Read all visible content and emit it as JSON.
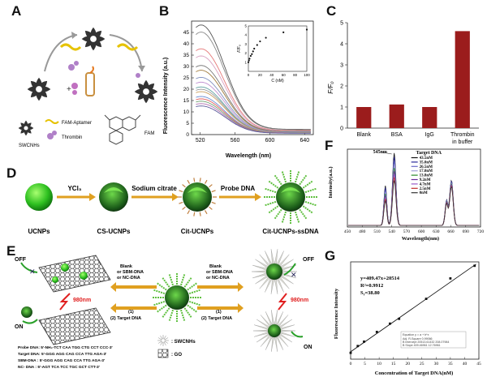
{
  "panels": {
    "A": {
      "label": "A",
      "legend": {
        "swcnhs": "SWCNHs",
        "aptamer": "FAM-Aptamer",
        "thrombin": "Thrombin",
        "fam": "FAM"
      }
    },
    "B": {
      "label": "B",
      "ylabel": "Fluorescence Intensity (a.u.)",
      "xlabel": "Wavelength (nm)",
      "inset": {
        "ylabel": "F/F₀",
        "xlabel": "C (nM)"
      }
    },
    "C": {
      "label": "C",
      "ylabel": "F/F₀"
    },
    "D": {
      "label": "D",
      "reagents": [
        "YCl₃",
        "Sodium citrate",
        "Probe DNA"
      ],
      "stages": [
        "UCNPs",
        "CS-UCNPs",
        "Cit-UCNPs",
        "Cit-UCNPs-ssDNA"
      ]
    },
    "E": {
      "label": "E",
      "off": "OFF",
      "on": "ON",
      "nm": "980nm",
      "left_options": [
        "Blank",
        "or SBM-DNA",
        "or NC-DNA"
      ],
      "right_options": [
        "Blank",
        "or SBM-DNA",
        "or NC-DNA"
      ],
      "step1": "(1)",
      "step2": "(2) Target DNA",
      "legend_swcnts": ": SWCNHs",
      "legend_go": ": GO",
      "sequences": [
        "Probe DNA: 5'-NH₂-TCT CAA TGG CTG CCT CCC-3'",
        "Target DNA: 5'-GGG AGG CAG CCA TTG AGA-3'",
        "SBM-DNA : 5'-GGG AGG CAG CCA TTG AGA-3'",
        "NC- DNA : 5'-AGT TCA TCC TGC GCT CTT-3'"
      ]
    },
    "F": {
      "label": "F",
      "peak_label": "545nm",
      "legend_title": "Target DNA",
      "ylabel": "Intensity(a.u.)",
      "xlabel": "Wavelength(nm)"
    },
    "G": {
      "label": "G",
      "equation": "y=409.47x+20514",
      "r2": "R²=0.9912",
      "sy": "Sᵧ=38.80",
      "ylabel": "Fluorescence Intensity",
      "xlabel": "Concentration of Target DNA(nM)",
      "table_title": "Equation    y = a + b*x",
      "table_rows": [
        "Adj. R-Square    0.99066",
        "B    Intercept    20513.61432    208.07984",
        "B    Slope    409.46961    12.76961"
      ]
    }
  },
  "chart_data": [
    {
      "type": "line",
      "title": "",
      "xlabel": "Wavelength (nm)",
      "ylabel": "Fluorescence Intensity (a.u.)",
      "xlim": [
        510,
        650
      ],
      "ylim": [
        0,
        50
      ],
      "x_ticks": [
        520,
        560,
        600,
        640
      ],
      "y_ticks": [
        0,
        5,
        10,
        15,
        20,
        25,
        30,
        35,
        40,
        45
      ],
      "series_peaks": [
        46,
        43,
        36,
        33,
        29,
        27,
        24,
        22,
        20,
        19,
        18,
        16,
        15,
        14,
        13,
        12
      ],
      "series_colors": [
        "#555555",
        "#888888",
        "#e57a7a",
        "#d9a0c0",
        "#777777",
        "#a07a3a",
        "#8090c0",
        "#c090d0",
        "#60a0a0",
        "#999999",
        "#caa060",
        "#6b8ed6",
        "#e06060",
        "#70a070",
        "#b070b0",
        "#5a5a9a"
      ]
    },
    {
      "type": "scatter",
      "title": "",
      "xlabel": "C (nM)",
      "ylabel": "F/F₀",
      "xlim": [
        0,
        100
      ],
      "ylim": [
        0,
        5
      ],
      "x_ticks": [
        0,
        20,
        40,
        60,
        80,
        100
      ],
      "y_ticks": [
        1,
        2,
        3,
        4,
        5
      ],
      "x": [
        0,
        1,
        2,
        4,
        6,
        8,
        10,
        15,
        20,
        30,
        60,
        100
      ],
      "y": [
        1.0,
        1.2,
        1.4,
        1.7,
        1.9,
        2.2,
        2.5,
        2.9,
        3.3,
        3.7,
        4.3,
        4.6
      ]
    },
    {
      "type": "bar",
      "title": "",
      "xlabel": "",
      "ylabel": "F/F₀",
      "categories": [
        "Blank",
        "BSA",
        "IgG",
        "Thrombin in buffer"
      ],
      "values": [
        1.0,
        1.12,
        1.0,
        4.6
      ],
      "ylim": [
        0,
        5
      ],
      "y_ticks": [
        0,
        1,
        2,
        3,
        4,
        5
      ],
      "color": "#9b1c1c"
    },
    {
      "type": "line",
      "title": "",
      "xlabel": "Wavelength(nm)",
      "ylabel": "Intensity(a.u.)",
      "xlim": [
        450,
        720
      ],
      "ylim": [
        0,
        1
      ],
      "x_ticks": [
        450,
        480,
        510,
        540,
        570,
        600,
        630,
        660,
        690,
        720
      ],
      "series": [
        {
          "name": "43.5nM",
          "peak545": 0.93,
          "peak660": 0.58,
          "color": "#111111"
        },
        {
          "name": "35.0nM",
          "peak545": 0.88,
          "peak660": 0.57,
          "color": "#2a2a9a"
        },
        {
          "name": "26.5nM",
          "peak545": 0.83,
          "peak660": 0.56,
          "color": "#6a6ac8"
        },
        {
          "name": "17.0nM",
          "peak545": 0.78,
          "peak660": 0.55,
          "color": "#a0a0d8"
        },
        {
          "name": "13.8nM",
          "peak545": 0.74,
          "peak660": 0.54,
          "color": "#2a8a2a"
        },
        {
          "name": "9.2nM",
          "peak545": 0.7,
          "peak660": 0.53,
          "color": "#6a2a9a"
        },
        {
          "name": "4.7nM",
          "peak545": 0.66,
          "peak660": 0.52,
          "color": "#9a5ac8"
        },
        {
          "name": "2.5nM",
          "peak545": 0.62,
          "peak660": 0.51,
          "color": "#c02a2a"
        },
        {
          "name": "0nM",
          "peak545": 0.58,
          "peak660": 0.5,
          "color": "#333333"
        }
      ]
    },
    {
      "type": "scatter",
      "title": "",
      "xlabel": "Concentration of Target DNA(nM)",
      "ylabel": "Fluorescence Intensity",
      "xlim": [
        0,
        45
      ],
      "ylim": [
        19000,
        39000
      ],
      "x_ticks": [
        0,
        5,
        10,
        15,
        20,
        25,
        30,
        35,
        40,
        45
      ],
      "x": [
        0,
        2.5,
        4.7,
        9.2,
        13.8,
        17.0,
        26.5,
        35.0,
        43.5
      ],
      "y": [
        20300,
        21700,
        22600,
        24600,
        26300,
        27300,
        31400,
        35600,
        38200
      ],
      "fit": {
        "slope": 409.47,
        "intercept": 20514
      }
    }
  ]
}
